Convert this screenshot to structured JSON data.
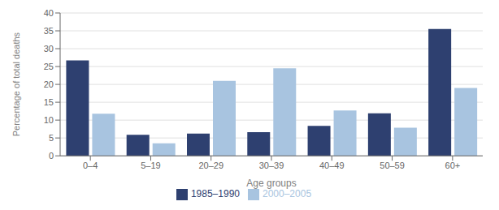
{
  "chart_data": {
    "type": "bar",
    "categories": [
      "0–4",
      "5–19",
      "20–29",
      "30–39",
      "40–49",
      "50–59",
      "60+"
    ],
    "series": [
      {
        "name": "1985–1990",
        "color": "#2E4070",
        "values": [
          26.7,
          5.9,
          6.2,
          6.6,
          8.4,
          11.9,
          35.5
        ]
      },
      {
        "name": "2000–2005",
        "color": "#A8C4E0",
        "values": [
          11.8,
          3.5,
          21.0,
          24.5,
          12.7,
          7.9,
          19.0
        ]
      }
    ],
    "xlabel": "Age groups",
    "ylabel": "Percentage of total deaths",
    "ylim": [
      0,
      40
    ],
    "yticks": [
      0,
      5,
      10,
      15,
      20,
      25,
      30,
      35,
      40
    ],
    "grid": true,
    "legend": "bottom"
  }
}
